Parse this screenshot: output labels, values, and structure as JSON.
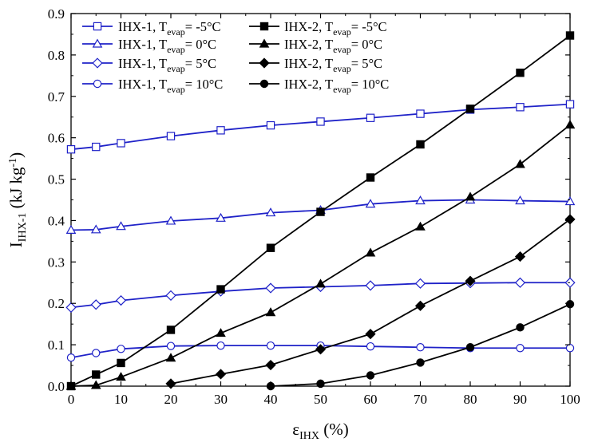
{
  "chart_data": {
    "type": "line",
    "xlabel": {
      "main": "ε",
      "sub": "IHX",
      "tail": " (%)"
    },
    "ylabel": {
      "main": "I",
      "sub": "IHX-1",
      "mid": " (kJ kg",
      "sup": "-1",
      "tail": ")"
    },
    "xlim": [
      0,
      100
    ],
    "ylim": [
      0.0,
      0.9
    ],
    "xticks": [
      0,
      10,
      20,
      30,
      40,
      50,
      60,
      70,
      80,
      90,
      100
    ],
    "yticks": [
      0.0,
      0.1,
      0.2,
      0.3,
      0.4,
      0.5,
      0.6,
      0.7,
      0.8,
      0.9
    ],
    "ytick_labels": [
      "0.0",
      "0.1",
      "0.2",
      "0.3",
      "0.4",
      "0.5",
      "0.6",
      "0.7",
      "0.8",
      "0.9"
    ],
    "xtick_labels": [
      "0",
      "10",
      "20",
      "30",
      "40",
      "50",
      "60",
      "70",
      "80",
      "90",
      "100"
    ],
    "grid": false,
    "legend_position": "top-left",
    "series": [
      {
        "name": "IHX-1, T",
        "name_sub": "evap",
        "name_tail": "= -5°C",
        "color": "#1f22c8",
        "marker": "square",
        "filled": false,
        "x": [
          0,
          5,
          10,
          20,
          30,
          40,
          50,
          60,
          70,
          80,
          90,
          100
        ],
        "y": [
          0.572,
          0.578,
          0.587,
          0.604,
          0.618,
          0.63,
          0.639,
          0.648,
          0.658,
          0.668,
          0.674,
          0.681
        ]
      },
      {
        "name": "IHX-1, T",
        "name_sub": "evap",
        "name_tail": "= 0°C",
        "color": "#1f22c8",
        "marker": "triangle",
        "filled": false,
        "x": [
          0,
          5,
          10,
          20,
          30,
          40,
          50,
          60,
          70,
          80,
          90,
          100
        ],
        "y": [
          0.377,
          0.378,
          0.386,
          0.399,
          0.406,
          0.419,
          0.425,
          0.44,
          0.448,
          0.45,
          0.448,
          0.446
        ]
      },
      {
        "name": "IHX-1, T",
        "name_sub": "evap",
        "name_tail": "= 5°C",
        "color": "#1f22c8",
        "marker": "diamond",
        "filled": false,
        "x": [
          0,
          5,
          10,
          20,
          30,
          40,
          50,
          60,
          70,
          80,
          90,
          100
        ],
        "y": [
          0.19,
          0.197,
          0.207,
          0.219,
          0.229,
          0.237,
          0.24,
          0.243,
          0.248,
          0.249,
          0.25,
          0.25
        ]
      },
      {
        "name": "IHX-1, T",
        "name_sub": "evap",
        "name_tail": "= 10°C",
        "color": "#1f22c8",
        "marker": "circle",
        "filled": false,
        "x": [
          0,
          5,
          10,
          20,
          30,
          40,
          50,
          60,
          70,
          80,
          90,
          100
        ],
        "y": [
          0.069,
          0.08,
          0.09,
          0.097,
          0.098,
          0.098,
          0.098,
          0.096,
          0.094,
          0.092,
          0.092,
          0.092
        ]
      },
      {
        "name": "IHX-2, T",
        "name_sub": "evap",
        "name_tail": "= -5°C",
        "color": "#000000",
        "marker": "square",
        "filled": true,
        "x": [
          0,
          5,
          10,
          20,
          30,
          40,
          50,
          60,
          70,
          80,
          90,
          100
        ],
        "y": [
          0.0,
          0.028,
          0.056,
          0.136,
          0.234,
          0.334,
          0.421,
          0.504,
          0.584,
          0.67,
          0.757,
          0.847
        ]
      },
      {
        "name": "IHX-2, T",
        "name_sub": "evap",
        "name_tail": "= 0°C",
        "color": "#000000",
        "marker": "triangle",
        "filled": true,
        "x": [
          0,
          5,
          10,
          20,
          30,
          40,
          50,
          60,
          70,
          80,
          90,
          100
        ],
        "y": [
          0.0,
          0.002,
          0.022,
          0.068,
          0.128,
          0.178,
          0.247,
          0.322,
          0.385,
          0.457,
          0.536,
          0.631
        ]
      },
      {
        "name": "IHX-2, T",
        "name_sub": "evap",
        "name_tail": "= 5°C",
        "color": "#000000",
        "marker": "diamond",
        "filled": true,
        "x": [
          20,
          30,
          40,
          50,
          60,
          70,
          80,
          90,
          100
        ],
        "y": [
          0.006,
          0.029,
          0.051,
          0.089,
          0.126,
          0.194,
          0.254,
          0.313,
          0.403
        ]
      },
      {
        "name": "IHX-2, T",
        "name_sub": "evap",
        "name_tail": "= 10°C",
        "color": "#000000",
        "marker": "circle",
        "filled": true,
        "x": [
          40,
          50,
          60,
          70,
          80,
          90,
          100
        ],
        "y": [
          0.0,
          0.006,
          0.026,
          0.057,
          0.094,
          0.142,
          0.198
        ]
      }
    ]
  }
}
